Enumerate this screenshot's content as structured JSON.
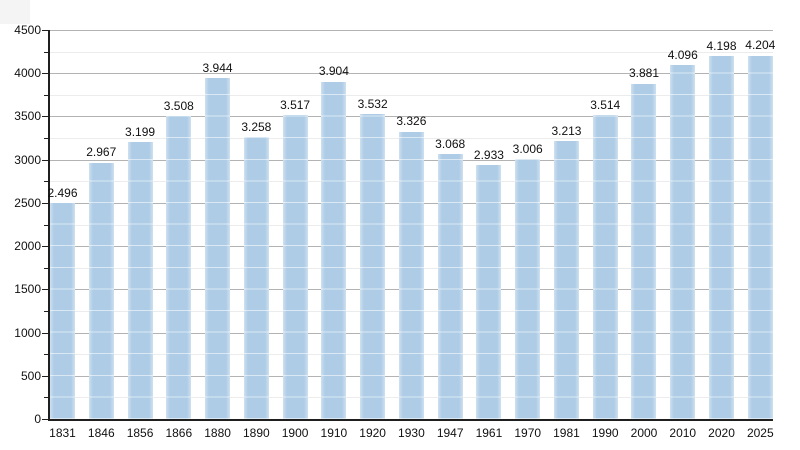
{
  "chart_data": {
    "type": "bar",
    "title": "",
    "xlabel": "",
    "ylabel": "",
    "categories": [
      "1831",
      "1846",
      "1856",
      "1866",
      "1880",
      "1890",
      "1900",
      "1910",
      "1920",
      "1930",
      "1947",
      "1961",
      "1970",
      "1981",
      "1990",
      "2000",
      "2010",
      "2020",
      "2025"
    ],
    "values": [
      2496,
      2967,
      3199,
      3508,
      3944,
      3258,
      3517,
      3904,
      3532,
      3326,
      3068,
      2933,
      3006,
      3213,
      3514,
      3881,
      4096,
      4198,
      4204
    ],
    "value_labels": [
      "2.496",
      "2.967",
      "3.199",
      "3.508",
      "3.944",
      "3.258",
      "3.517",
      "3.904",
      "3.532",
      "3.326",
      "3.068",
      "2.933",
      "3.006",
      "3.213",
      "3.514",
      "3.881",
      "4.096",
      "4.198",
      "4.204"
    ],
    "ylim": [
      0,
      4500
    ],
    "y_major_step": 500,
    "y_minor_step": 250,
    "y_tick_labels": [
      "0",
      "500",
      "1000",
      "1500",
      "2000",
      "2500",
      "3000",
      "3500",
      "4000",
      "4500"
    ],
    "grid": "major+minor horizontal",
    "legend_position": "none",
    "colors": {
      "bar_fill": "#aecce6",
      "grid_major": "#b3b3b3",
      "grid_minor": "#ececec",
      "axis": "#1f1f1f",
      "text": "#111111",
      "background": "#ffffff"
    }
  }
}
